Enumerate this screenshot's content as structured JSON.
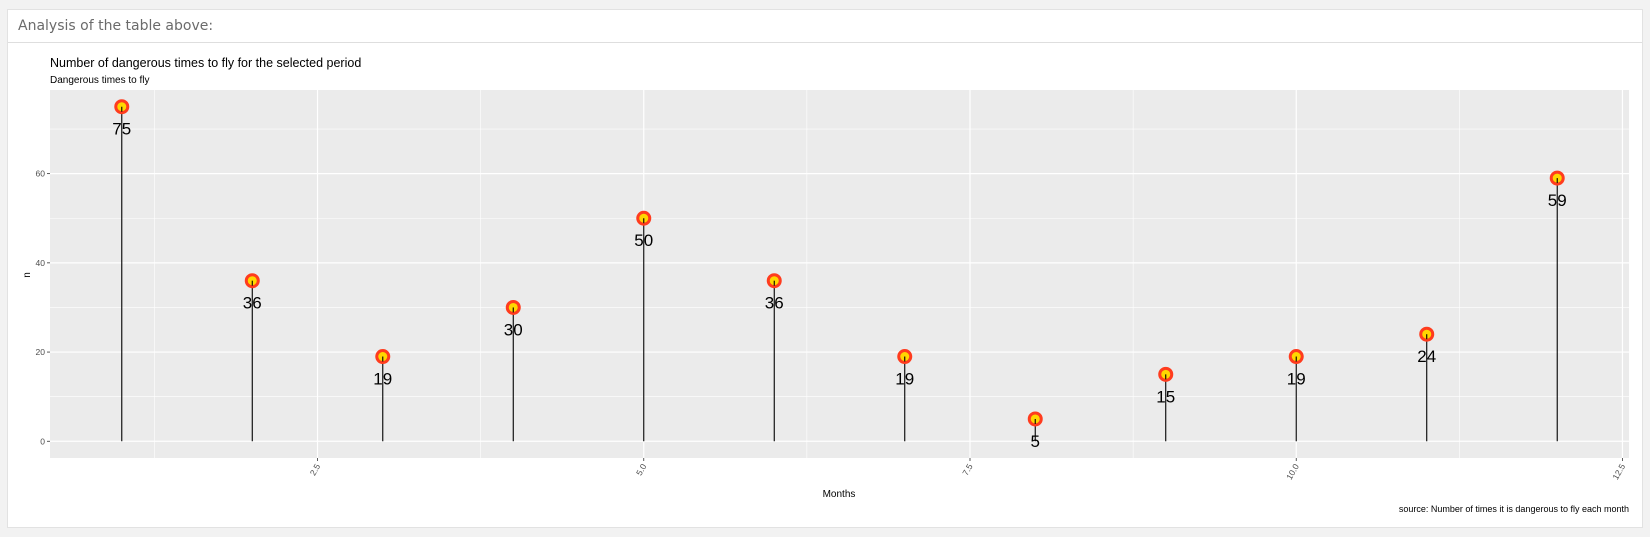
{
  "panel": {
    "title": "Analysis of the table above:"
  },
  "chart_data": {
    "type": "lollipop",
    "title": "Number of dangerous times to fly for the selected period",
    "subtitle": "Dangerous times to fly",
    "xlabel": "Months",
    "ylabel": "n",
    "caption": "source: Number of times it is dangerous to fly each month",
    "x": [
      1,
      2,
      3,
      4,
      5,
      6,
      7,
      8,
      9,
      10,
      11,
      12
    ],
    "values": [
      75,
      36,
      19,
      30,
      50,
      36,
      19,
      5,
      15,
      19,
      24,
      59
    ],
    "xlim": [
      0.45,
      12.55
    ],
    "ylim": [
      -3.75,
      78.75
    ],
    "xticks": [
      2.5,
      5.0,
      7.5,
      10.0,
      12.5
    ],
    "xtick_labels": [
      "2.5",
      "5.0",
      "7.5",
      "10.0",
      "12.5"
    ],
    "yticks": [
      0,
      20,
      40,
      60
    ],
    "ytick_labels": [
      "0",
      "20",
      "40",
      "60"
    ],
    "grid": true,
    "colors": {
      "panel_bg": "#ebebeb",
      "grid": "#ffffff",
      "stem": "#000000",
      "point_fill": "#ffd700",
      "point_stroke": "#ff3c1e"
    }
  }
}
